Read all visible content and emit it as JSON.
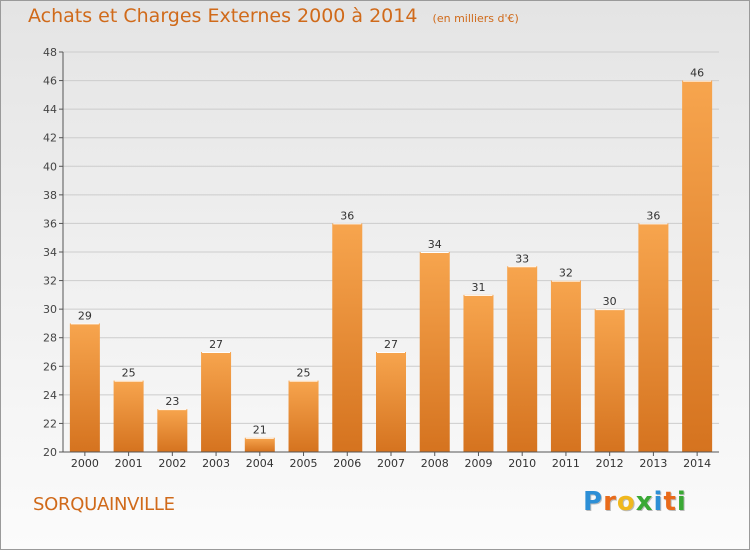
{
  "colors": {
    "title": "#d06a1a",
    "bar_light": "#f7a54e",
    "bar_dark": "#d5731f",
    "grid": "#cccccc",
    "axis": "#555555"
  },
  "location": "SORQUAINVILLE",
  "brand": {
    "letters": [
      {
        "ch": "P",
        "color": "#2d8fd6"
      },
      {
        "ch": "r",
        "color": "#e96b1a"
      },
      {
        "ch": "o",
        "color": "#f0b81e"
      },
      {
        "ch": "x",
        "color": "#3aa935"
      },
      {
        "ch": "i",
        "color": "#2d8fd6"
      },
      {
        "ch": "t",
        "color": "#e96b1a"
      },
      {
        "ch": "i",
        "color": "#3aa935"
      }
    ]
  },
  "chart_data": {
    "type": "bar",
    "title": "Achats et Charges Externes 2000 à 2014",
    "subtitle": "(en milliers d'€)",
    "categories": [
      "2000",
      "2001",
      "2002",
      "2003",
      "2004",
      "2005",
      "2006",
      "2007",
      "2008",
      "2009",
      "2010",
      "2011",
      "2012",
      "2013",
      "2014"
    ],
    "values": [
      29,
      25,
      23,
      27,
      21,
      25,
      36,
      27,
      34,
      31,
      33,
      32,
      30,
      36,
      46
    ],
    "ylim": [
      20,
      48
    ],
    "ytick_step": 2,
    "grid": true,
    "data_labels": true,
    "legend": "none"
  }
}
